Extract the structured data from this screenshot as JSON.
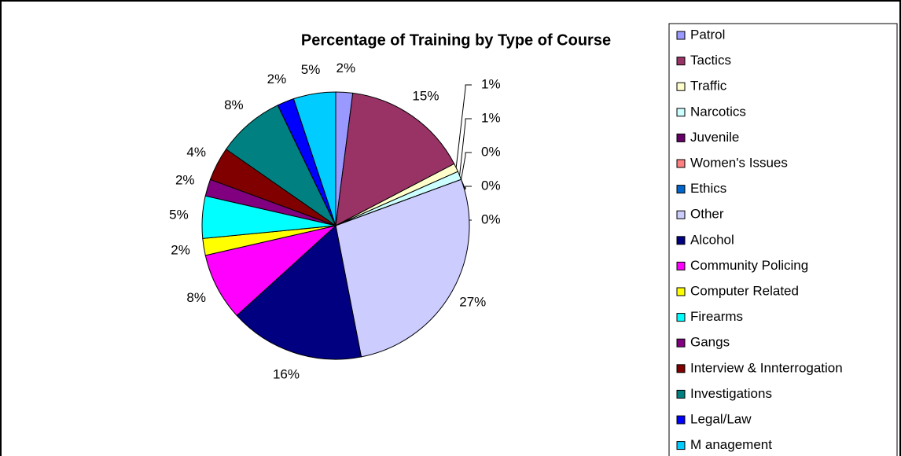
{
  "chart_data": {
    "type": "pie",
    "title": "Percentage of Training by Type of Course",
    "categories": [
      "Patrol",
      "Tactics",
      "Traffic",
      "Narcotics",
      "Juvenile",
      "Women's Issues",
      "Ethics",
      "Other",
      "Alcohol",
      "Community Policing",
      "Computer Related",
      "Firearms",
      "Gangs",
      "Interview & Innterrogation",
      "Investigations",
      "Legal/Law",
      "M anagement"
    ],
    "values": [
      2,
      15,
      1,
      1,
      0,
      0,
      0,
      27,
      16,
      8,
      2,
      5,
      2,
      4,
      8,
      2,
      5
    ],
    "value_labels": [
      "2%",
      "15%",
      "1%",
      "1%",
      "0%",
      "0%",
      "0%",
      "27%",
      "16%",
      "8%",
      "2%",
      "5%",
      "2%",
      "4%",
      "8%",
      "2%",
      "5%"
    ],
    "colors": [
      "#9999ff",
      "#993366",
      "#ffffcc",
      "#ccffff",
      "#660066",
      "#ff8080",
      "#0066cc",
      "#ccccff",
      "#000080",
      "#ff00ff",
      "#ffff00",
      "#00ffff",
      "#800080",
      "#800000",
      "#008080",
      "#0000ff",
      "#00ccff"
    ],
    "legend": "right"
  }
}
